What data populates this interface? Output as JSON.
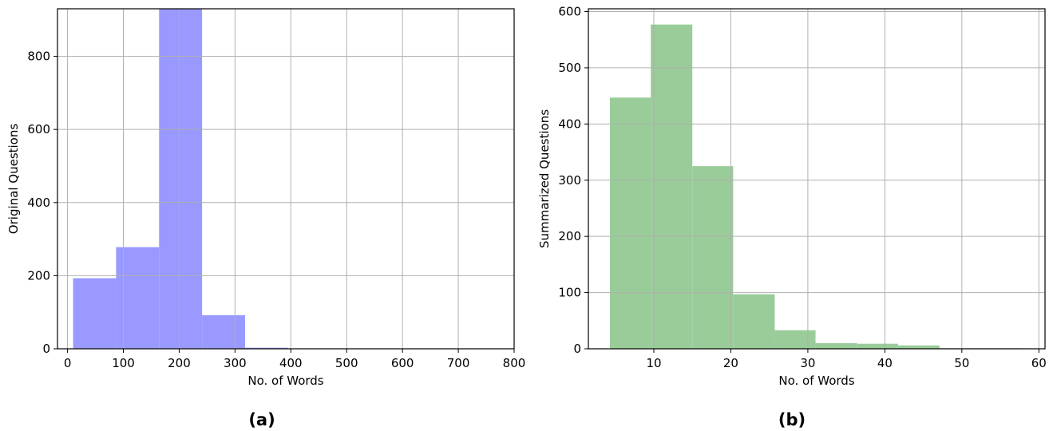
{
  "chart_data": [
    {
      "type": "histogram",
      "panel_label": "(a)",
      "xlabel": "No. of Words",
      "ylabel": "Original Questions",
      "xlim": [
        -18,
        800
      ],
      "ylim": [
        0,
        930
      ],
      "xticks": [
        0,
        100,
        200,
        300,
        400,
        500,
        600,
        700,
        800
      ],
      "yticks": [
        0,
        200,
        400,
        600,
        800
      ],
      "grid": true,
      "color": "#9999ff",
      "bins": [
        {
          "x0": 10,
          "x1": 87,
          "count": 193
        },
        {
          "x0": 87,
          "x1": 164,
          "count": 278
        },
        {
          "x0": 164,
          "x1": 241,
          "count": 930
        },
        {
          "x0": 241,
          "x1": 318,
          "count": 92
        },
        {
          "x0": 318,
          "x1": 395,
          "count": 3
        },
        {
          "x0": 395,
          "x1": 472,
          "count": 1
        },
        {
          "x0": 472,
          "x1": 549,
          "count": 1
        },
        {
          "x0": 549,
          "x1": 626,
          "count": 0
        },
        {
          "x0": 626,
          "x1": 703,
          "count": 0
        },
        {
          "x0": 703,
          "x1": 780,
          "count": 1
        }
      ]
    },
    {
      "type": "histogram",
      "panel_label": "(b)",
      "xlabel": "No. of Words",
      "ylabel": "Summarized Questions",
      "xlim": [
        1.5,
        60.8
      ],
      "ylim": [
        0,
        605
      ],
      "xticks": [
        10,
        20,
        30,
        40,
        50,
        60
      ],
      "yticks": [
        0,
        100,
        200,
        300,
        400,
        500,
        600
      ],
      "grid": true,
      "color": "#99cc99",
      "bins": [
        {
          "x0": 4.3,
          "x1": 9.6,
          "count": 447
        },
        {
          "x0": 9.6,
          "x1": 15.0,
          "count": 577
        },
        {
          "x0": 15.0,
          "x1": 20.3,
          "count": 325
        },
        {
          "x0": 20.3,
          "x1": 25.7,
          "count": 97
        },
        {
          "x0": 25.7,
          "x1": 31.0,
          "count": 33
        },
        {
          "x0": 31.0,
          "x1": 36.4,
          "count": 10
        },
        {
          "x0": 36.4,
          "x1": 41.7,
          "count": 9
        },
        {
          "x0": 41.7,
          "x1": 47.1,
          "count": 6
        },
        {
          "x0": 47.1,
          "x1": 52.4,
          "count": 1
        },
        {
          "x0": 52.4,
          "x1": 57.8,
          "count": 1
        }
      ]
    }
  ]
}
